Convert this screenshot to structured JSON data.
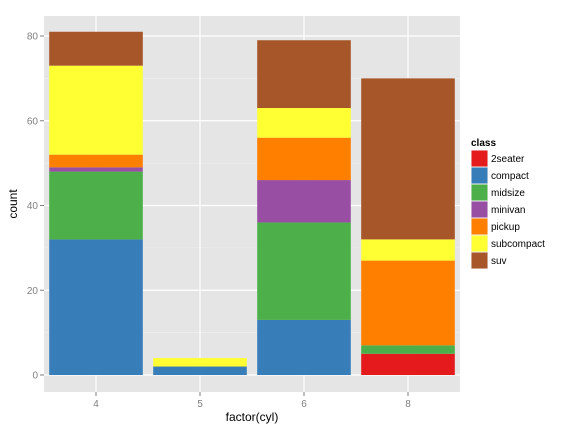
{
  "chart_data": {
    "type": "bar",
    "stacked": true,
    "xlabel": "factor(cyl)",
    "ylabel": "count",
    "categories": [
      "4",
      "5",
      "6",
      "8"
    ],
    "ylim": [
      0,
      85
    ],
    "yticks": [
      0,
      20,
      40,
      60,
      80
    ],
    "grid": true,
    "legend_position": "right",
    "legend_title": "class",
    "series": [
      {
        "name": "2seater",
        "color": "#E41A1C",
        "values": [
          0,
          0,
          0,
          5
        ]
      },
      {
        "name": "compact",
        "color": "#377EB8",
        "values": [
          32,
          2,
          13,
          0
        ]
      },
      {
        "name": "midsize",
        "color": "#4DAF4A",
        "values": [
          16,
          0,
          23,
          2
        ]
      },
      {
        "name": "minivan",
        "color": "#984EA3",
        "values": [
          1,
          0,
          10,
          0
        ]
      },
      {
        "name": "pickup",
        "color": "#FF7F00",
        "values": [
          3,
          0,
          10,
          20
        ]
      },
      {
        "name": "subcompact",
        "color": "#FFFF33",
        "values": [
          21,
          2,
          7,
          5
        ]
      },
      {
        "name": "suv",
        "color": "#A65628",
        "values": [
          8,
          0,
          16,
          38
        ]
      }
    ]
  }
}
